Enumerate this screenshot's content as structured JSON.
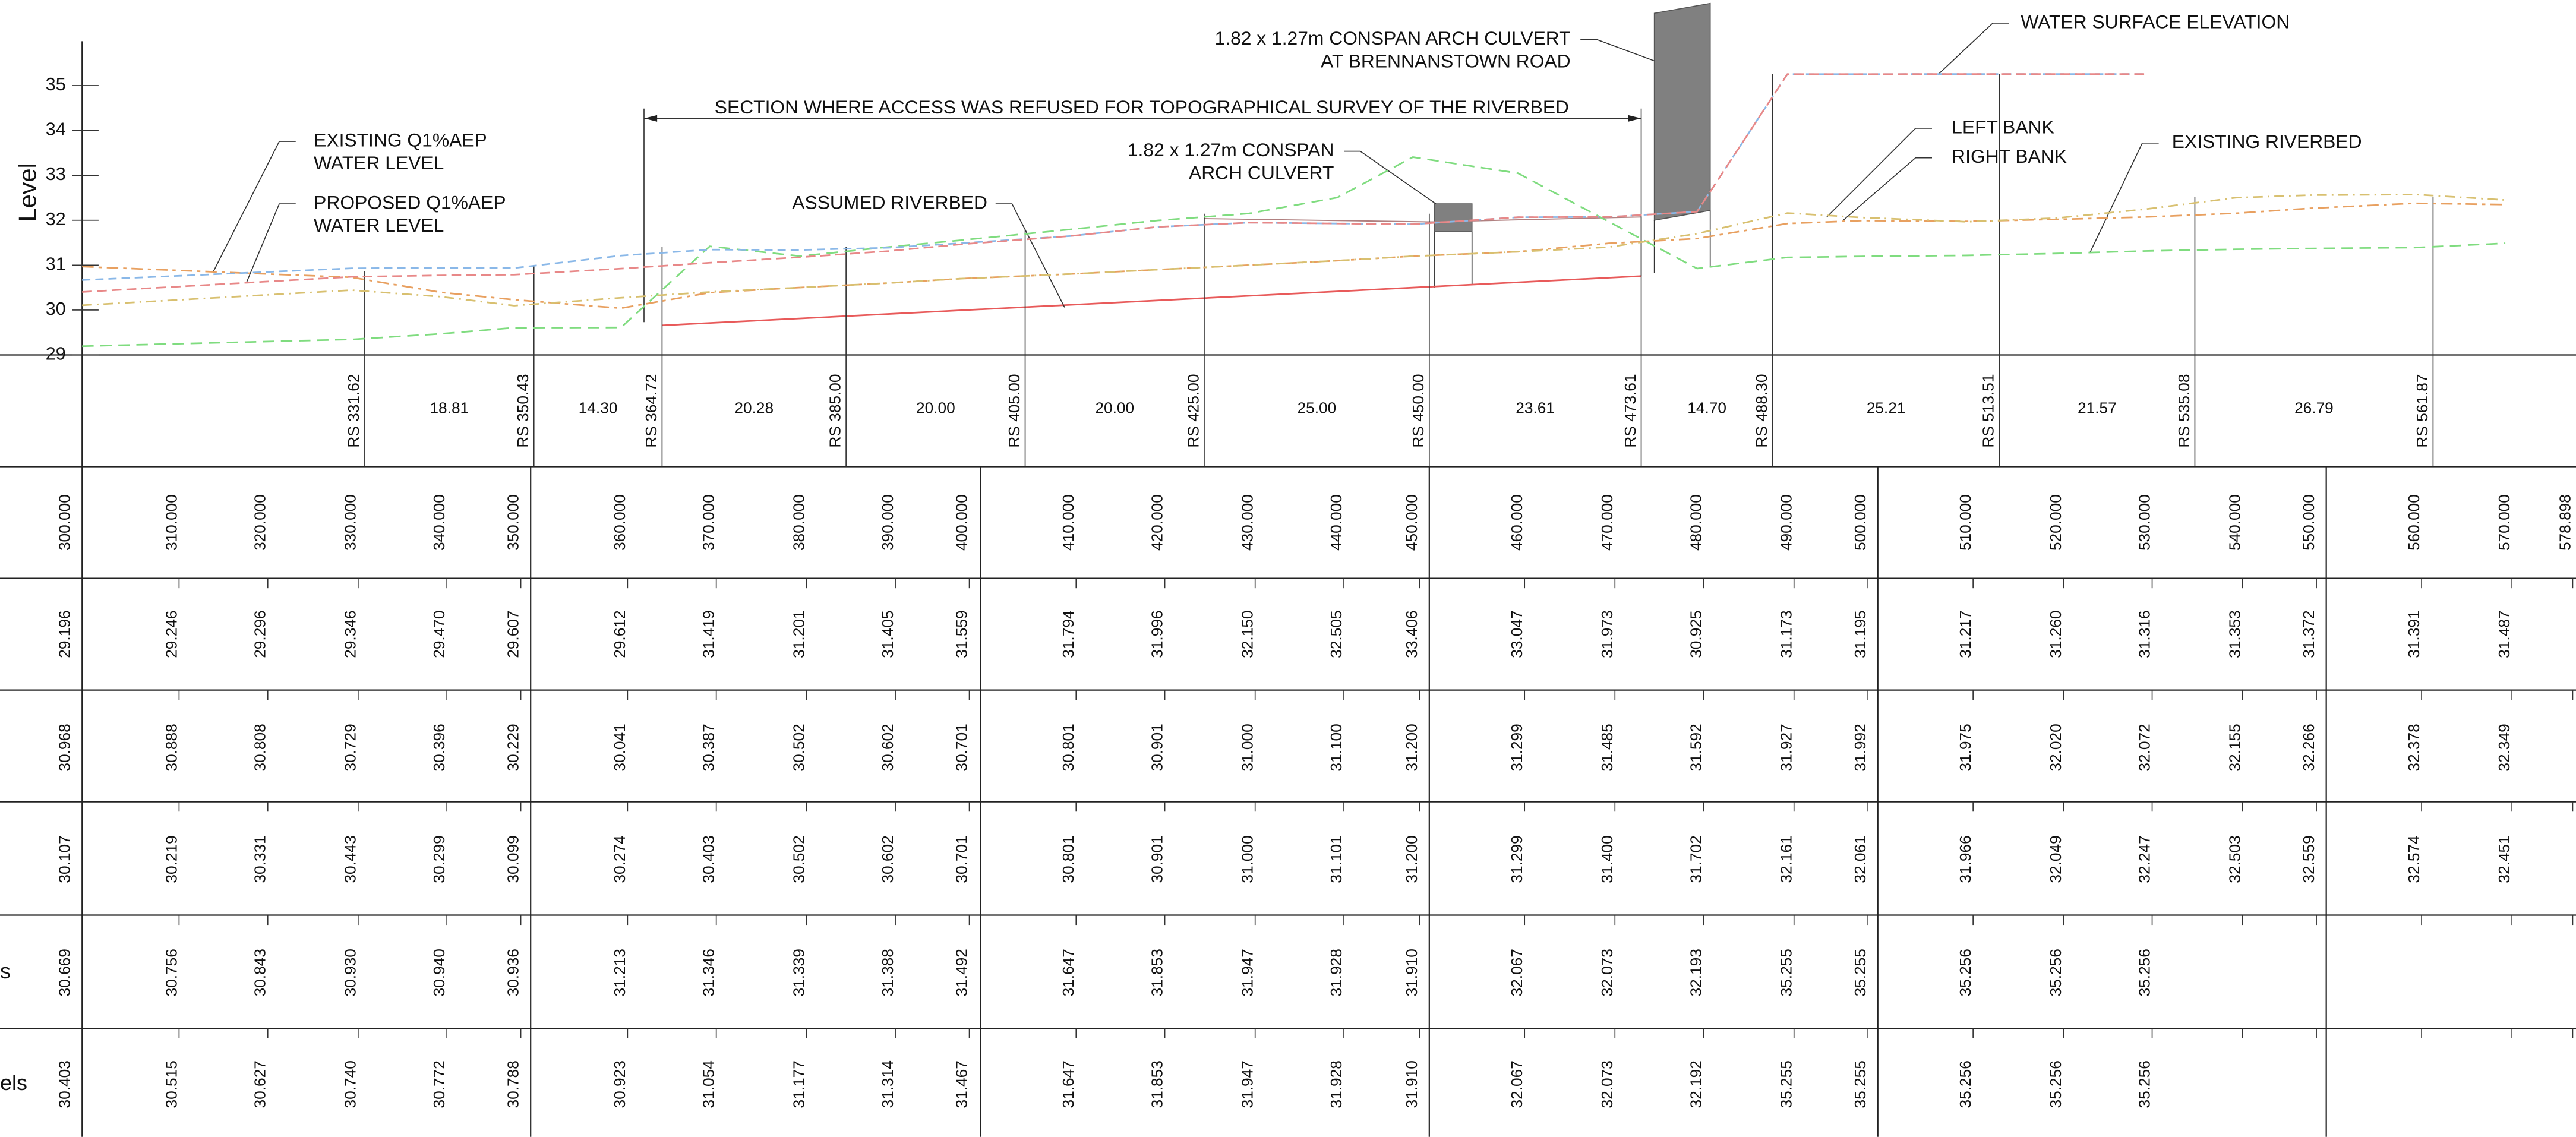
{
  "level_axis": {
    "label": "Level",
    "ticks": [
      29,
      30,
      31,
      32,
      33,
      34,
      35
    ]
  },
  "annotations": [
    {
      "lines": [
        "1.82 x 1.27m CONSPAN ARCH CULVERT",
        "AT BRENNANSTOWN ROAD"
      ]
    },
    {
      "lines": [
        "WATER SURFACE ELEVATION"
      ]
    },
    {
      "lines": [
        "SECTION WHERE ACCESS WAS REFUSED FOR TOPOGRAPHICAL SURVEY OF THE RIVERBED"
      ]
    },
    {
      "lines": [
        "LEFT BANK"
      ]
    },
    {
      "lines": [
        "RIGHT BANK"
      ]
    },
    {
      "lines": [
        "EXISTING RIVERBED"
      ]
    },
    {
      "lines": [
        "1.82 x 1.27m CONSPAN",
        "ARCH CULVERT"
      ]
    },
    {
      "lines": [
        "ASSUMED RIVERBED"
      ]
    },
    {
      "lines": [
        "EXISTING Q1%AEP",
        "WATER LEVEL"
      ]
    },
    {
      "lines": [
        "PROPOSED Q1%AEP",
        "WATER LEVEL"
      ]
    }
  ],
  "sections": {
    "stations": [
      "RS 331.62",
      "RS 350.43",
      "RS 364.72",
      "RS 385.00",
      "RS 405.00",
      "RS 425.00",
      "RS 450.00",
      "RS 473.61",
      "RS 488.30",
      "RS 513.51",
      "RS 535.08",
      "RS 561.87"
    ],
    "distances": [
      "18.81",
      "14.30",
      "20.28",
      "20.00",
      "20.00",
      "25.00",
      "23.61",
      "14.70",
      "25.21",
      "21.57",
      "26.79"
    ]
  },
  "table": {
    "chainage": [
      "300.000",
      "310.000",
      "320.000",
      "330.000",
      "340.000",
      "350.000",
      "360.000",
      "370.000",
      "380.000",
      "390.000",
      "400.000",
      "410.000",
      "420.000",
      "430.000",
      "440.000",
      "450.000",
      "460.000",
      "470.000",
      "480.000",
      "490.000",
      "500.000",
      "510.000",
      "520.000",
      "530.000",
      "540.000",
      "550.000",
      "560.000",
      "570.000",
      "578.898"
    ],
    "rows": [
      {
        "values": [
          "29.196",
          "29.246",
          "29.296",
          "29.346",
          "29.470",
          "29.607",
          "29.612",
          "31.419",
          "31.201",
          "31.405",
          "31.559",
          "31.794",
          "31.996",
          "32.150",
          "32.505",
          "33.406",
          "33.047",
          "31.973",
          "30.925",
          "31.173",
          "31.195",
          "31.217",
          "31.260",
          "31.316",
          "31.353",
          "31.372",
          "31.391",
          "31.487"
        ]
      },
      {
        "values": [
          "30.968",
          "30.888",
          "30.808",
          "30.729",
          "30.396",
          "30.229",
          "30.041",
          "30.387",
          "30.502",
          "30.602",
          "30.701",
          "30.801",
          "30.901",
          "31.000",
          "31.100",
          "31.200",
          "31.299",
          "31.485",
          "31.592",
          "31.927",
          "31.992",
          "31.975",
          "32.020",
          "32.072",
          "32.155",
          "32.266",
          "32.378",
          "32.349"
        ]
      },
      {
        "values": [
          "30.107",
          "30.219",
          "30.331",
          "30.443",
          "30.299",
          "30.099",
          "30.274",
          "30.403",
          "30.502",
          "30.602",
          "30.701",
          "30.801",
          "30.901",
          "31.000",
          "31.101",
          "31.200",
          "31.299",
          "31.400",
          "31.702",
          "32.161",
          "32.061",
          "31.966",
          "32.049",
          "32.247",
          "32.503",
          "32.559",
          "32.574",
          "32.451"
        ]
      },
      {
        "label": "s",
        "values": [
          "30.669",
          "30.756",
          "30.843",
          "30.930",
          "30.940",
          "30.936",
          "31.213",
          "31.346",
          "31.339",
          "31.388",
          "31.492",
          "31.647",
          "31.853",
          "31.947",
          "31.928",
          "31.910",
          "32.067",
          "32.073",
          "32.193",
          "35.255",
          "35.255",
          "35.256",
          "35.256",
          "35.256"
        ]
      },
      {
        "label": "els",
        "values": [
          "30.403",
          "30.515",
          "30.627",
          "30.740",
          "30.772",
          "30.788",
          "30.923",
          "31.054",
          "31.177",
          "31.314",
          "31.467",
          "31.647",
          "31.853",
          "31.947",
          "31.928",
          "31.910",
          "32.067",
          "32.073",
          "32.192",
          "35.255",
          "35.255",
          "35.256",
          "35.256",
          "35.256"
        ]
      }
    ]
  }
}
